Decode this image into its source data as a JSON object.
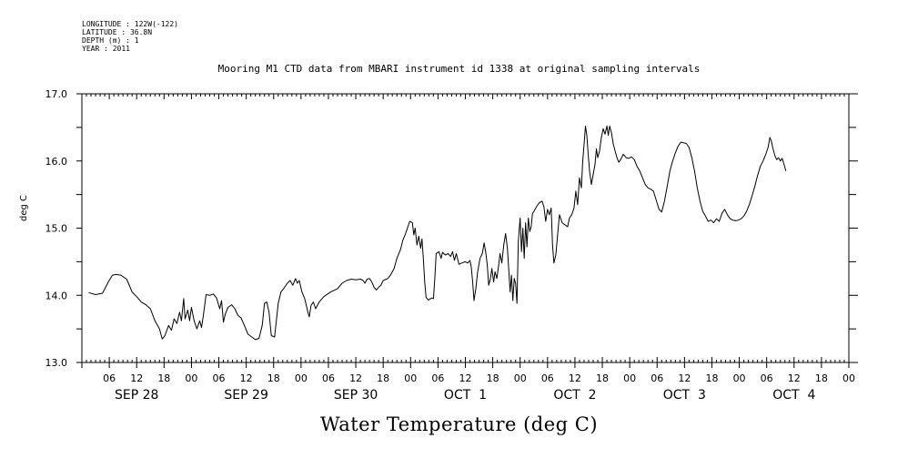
{
  "meta": {
    "longitude": "LONGITUDE : 122W(-122)",
    "latitude": "LATITUDE : 36.8N",
    "depth": "DEPTH (m) : 1",
    "year": "YEAR : 2011"
  },
  "chart_data": {
    "type": "line",
    "title": "Mooring M1 CTD data from MBARI instrument id 1338 at original sampling intervals",
    "bottom_title": "Water Temperature (deg C)",
    "ylabel": "deg C",
    "xlabel": "",
    "ylim": [
      13.0,
      17.0
    ],
    "yticks": [
      "13.0",
      "14.0",
      "15.0",
      "16.0",
      "17.0"
    ],
    "xlim_hours": [
      0,
      168
    ],
    "x_hour_ticks": [
      "06",
      "12",
      "18",
      "00",
      "06",
      "12",
      "18",
      "00",
      "06",
      "12",
      "18",
      "00",
      "06",
      "12",
      "18",
      "00",
      "06",
      "12",
      "18",
      "00",
      "06",
      "12",
      "18",
      "00",
      "06",
      "12",
      "18",
      "00"
    ],
    "x_day_labels": [
      "SEP 28",
      "SEP 29",
      "SEP 30",
      "OCT  1",
      "OCT  2",
      "OCT  3",
      "OCT  4"
    ],
    "grid": false,
    "series": [
      {
        "values": [
          [
            1.5,
            14.04
          ],
          [
            3.0,
            14.01
          ],
          [
            4.5,
            14.03
          ],
          [
            5.8,
            14.2
          ],
          [
            6.7,
            14.3
          ],
          [
            7.5,
            14.31
          ],
          [
            8.5,
            14.3
          ],
          [
            9.8,
            14.24
          ],
          [
            11.0,
            14.05
          ],
          [
            12.0,
            13.98
          ],
          [
            13.0,
            13.9
          ],
          [
            14.0,
            13.86
          ],
          [
            15.0,
            13.8
          ],
          [
            16.0,
            13.62
          ],
          [
            17.0,
            13.5
          ],
          [
            17.6,
            13.35
          ],
          [
            18.2,
            13.4
          ],
          [
            19.0,
            13.55
          ],
          [
            19.6,
            13.48
          ],
          [
            20.2,
            13.65
          ],
          [
            20.8,
            13.58
          ],
          [
            21.4,
            13.75
          ],
          [
            21.8,
            13.62
          ],
          [
            22.3,
            13.95
          ],
          [
            22.6,
            13.65
          ],
          [
            23.2,
            13.78
          ],
          [
            23.6,
            13.62
          ],
          [
            24.0,
            13.82
          ],
          [
            24.6,
            13.62
          ],
          [
            25.2,
            13.5
          ],
          [
            25.8,
            13.62
          ],
          [
            26.2,
            13.52
          ],
          [
            26.6,
            13.7
          ],
          [
            27.2,
            14.01
          ],
          [
            28.0,
            14.0
          ],
          [
            28.8,
            14.02
          ],
          [
            29.5,
            13.96
          ],
          [
            30.2,
            13.8
          ],
          [
            30.6,
            13.92
          ],
          [
            31.0,
            13.6
          ],
          [
            31.4,
            13.72
          ],
          [
            32.0,
            13.82
          ],
          [
            32.8,
            13.86
          ],
          [
            33.5,
            13.8
          ],
          [
            34.2,
            13.7
          ],
          [
            34.9,
            13.66
          ],
          [
            35.6,
            13.55
          ],
          [
            36.4,
            13.42
          ],
          [
            37.2,
            13.38
          ],
          [
            38.0,
            13.34
          ],
          [
            38.8,
            13.36
          ],
          [
            39.5,
            13.55
          ],
          [
            40.0,
            13.88
          ],
          [
            40.5,
            13.9
          ],
          [
            41.0,
            13.75
          ],
          [
            41.5,
            13.4
          ],
          [
            42.2,
            13.38
          ],
          [
            43.0,
            13.88
          ],
          [
            43.6,
            14.05
          ],
          [
            44.2,
            14.1
          ],
          [
            45.0,
            14.18
          ],
          [
            45.6,
            14.22
          ],
          [
            46.2,
            14.15
          ],
          [
            46.8,
            14.25
          ],
          [
            47.2,
            14.18
          ],
          [
            47.6,
            14.22
          ],
          [
            48.2,
            14.05
          ],
          [
            48.8,
            13.95
          ],
          [
            49.5,
            13.75
          ],
          [
            49.8,
            13.68
          ],
          [
            50.2,
            13.85
          ],
          [
            50.7,
            13.9
          ],
          [
            51.2,
            13.8
          ],
          [
            51.6,
            13.85
          ],
          [
            52.0,
            13.9
          ],
          [
            53.0,
            13.98
          ],
          [
            54.5,
            14.05
          ],
          [
            56.0,
            14.1
          ],
          [
            57.0,
            14.18
          ],
          [
            58.0,
            14.22
          ],
          [
            59.0,
            14.24
          ],
          [
            60.0,
            14.23
          ],
          [
            61.0,
            14.24
          ],
          [
            61.6,
            14.22
          ],
          [
            62.0,
            14.18
          ],
          [
            62.5,
            14.24
          ],
          [
            63.0,
            14.25
          ],
          [
            63.5,
            14.2
          ],
          [
            64.0,
            14.12
          ],
          [
            64.5,
            14.08
          ],
          [
            65.0,
            14.12
          ],
          [
            65.5,
            14.15
          ],
          [
            66.0,
            14.22
          ],
          [
            67.0,
            14.25
          ],
          [
            67.6,
            14.3
          ],
          [
            68.4,
            14.4
          ],
          [
            69.0,
            14.55
          ],
          [
            69.8,
            14.68
          ],
          [
            70.3,
            14.82
          ],
          [
            70.9,
            14.92
          ],
          [
            71.4,
            15.02
          ],
          [
            71.8,
            15.1
          ],
          [
            72.4,
            15.08
          ],
          [
            72.7,
            14.9
          ],
          [
            73.0,
            15.0
          ],
          [
            73.4,
            14.75
          ],
          [
            73.8,
            14.88
          ],
          [
            74.2,
            14.7
          ],
          [
            74.5,
            14.84
          ],
          [
            74.8,
            14.55
          ],
          [
            75.1,
            14.2
          ],
          [
            75.4,
            13.97
          ],
          [
            75.9,
            13.93
          ],
          [
            76.6,
            13.96
          ],
          [
            77.0,
            13.95
          ],
          [
            77.3,
            14.25
          ],
          [
            77.6,
            14.62
          ],
          [
            78.2,
            14.65
          ],
          [
            78.7,
            14.55
          ],
          [
            79.0,
            14.64
          ],
          [
            79.6,
            14.6
          ],
          [
            80.2,
            14.62
          ],
          [
            80.8,
            14.58
          ],
          [
            81.2,
            14.65
          ],
          [
            81.6,
            14.52
          ],
          [
            82.0,
            14.62
          ],
          [
            82.6,
            14.46
          ],
          [
            83.2,
            14.48
          ],
          [
            84.0,
            14.5
          ],
          [
            84.5,
            14.48
          ],
          [
            85.0,
            14.52
          ],
          [
            85.3,
            14.42
          ],
          [
            85.6,
            14.2
          ],
          [
            85.9,
            13.92
          ],
          [
            86.3,
            14.1
          ],
          [
            86.7,
            14.35
          ],
          [
            87.2,
            14.55
          ],
          [
            87.7,
            14.62
          ],
          [
            88.1,
            14.78
          ],
          [
            88.5,
            14.62
          ],
          [
            88.8,
            14.45
          ],
          [
            89.1,
            14.15
          ],
          [
            89.5,
            14.25
          ],
          [
            89.8,
            14.4
          ],
          [
            90.2,
            14.2
          ],
          [
            90.5,
            14.35
          ],
          [
            90.9,
            14.25
          ],
          [
            91.3,
            14.45
          ],
          [
            91.6,
            14.62
          ],
          [
            92.0,
            14.48
          ],
          [
            92.4,
            14.75
          ],
          [
            92.8,
            14.92
          ],
          [
            93.2,
            14.7
          ],
          [
            93.5,
            14.38
          ],
          [
            93.8,
            14.05
          ],
          [
            94.1,
            14.3
          ],
          [
            94.4,
            13.92
          ],
          [
            94.7,
            14.25
          ],
          [
            95.0,
            14.18
          ],
          [
            95.3,
            13.88
          ],
          [
            95.6,
            14.8
          ],
          [
            96.0,
            15.15
          ],
          [
            96.3,
            14.65
          ],
          [
            96.6,
            15.0
          ],
          [
            96.9,
            14.55
          ],
          [
            97.2,
            15.08
          ],
          [
            97.5,
            14.72
          ],
          [
            97.8,
            15.15
          ],
          [
            98.1,
            14.95
          ],
          [
            98.4,
            15.02
          ],
          [
            98.7,
            15.22
          ],
          [
            99.0,
            15.25
          ],
          [
            99.6,
            15.32
          ],
          [
            100.2,
            15.38
          ],
          [
            100.8,
            15.4
          ],
          [
            101.2,
            15.32
          ],
          [
            101.6,
            15.1
          ],
          [
            102.0,
            15.28
          ],
          [
            102.4,
            15.2
          ],
          [
            102.8,
            15.3
          ],
          [
            103.1,
            14.75
          ],
          [
            103.4,
            14.48
          ],
          [
            103.8,
            14.6
          ],
          [
            104.2,
            14.9
          ],
          [
            104.6,
            15.2
          ],
          [
            105.2,
            15.08
          ],
          [
            105.8,
            15.05
          ],
          [
            106.4,
            15.02
          ],
          [
            106.8,
            15.15
          ],
          [
            107.3,
            15.2
          ],
          [
            107.8,
            15.3
          ],
          [
            108.2,
            15.55
          ],
          [
            108.6,
            15.35
          ],
          [
            109.0,
            15.75
          ],
          [
            109.4,
            15.6
          ],
          [
            109.7,
            16.0
          ],
          [
            110.0,
            16.25
          ],
          [
            110.3,
            16.52
          ],
          [
            110.6,
            16.38
          ],
          [
            110.9,
            16.1
          ],
          [
            111.2,
            15.85
          ],
          [
            111.6,
            15.65
          ],
          [
            112.0,
            15.8
          ],
          [
            112.4,
            15.95
          ],
          [
            112.7,
            16.18
          ],
          [
            113.0,
            16.05
          ],
          [
            113.4,
            16.15
          ],
          [
            113.8,
            16.35
          ],
          [
            114.2,
            16.48
          ],
          [
            114.6,
            16.4
          ],
          [
            115.0,
            16.52
          ],
          [
            115.3,
            16.38
          ],
          [
            115.6,
            16.52
          ],
          [
            116.0,
            16.42
          ],
          [
            116.4,
            16.25
          ],
          [
            116.8,
            16.15
          ],
          [
            117.2,
            16.05
          ],
          [
            117.6,
            15.98
          ],
          [
            118.0,
            16.02
          ],
          [
            118.6,
            16.1
          ],
          [
            119.2,
            16.05
          ],
          [
            119.8,
            16.04
          ],
          [
            120.4,
            16.06
          ],
          [
            121.0,
            16.02
          ],
          [
            121.6,
            15.92
          ],
          [
            122.2,
            15.85
          ],
          [
            122.8,
            15.75
          ],
          [
            123.4,
            15.65
          ],
          [
            124.0,
            15.6
          ],
          [
            124.6,
            15.58
          ],
          [
            125.2,
            15.55
          ],
          [
            125.8,
            15.42
          ],
          [
            126.4,
            15.28
          ],
          [
            127.0,
            15.24
          ],
          [
            127.6,
            15.4
          ],
          [
            128.2,
            15.62
          ],
          [
            128.8,
            15.85
          ],
          [
            129.4,
            16.0
          ],
          [
            130.0,
            16.12
          ],
          [
            130.6,
            16.22
          ],
          [
            131.2,
            16.28
          ],
          [
            131.8,
            16.27
          ],
          [
            132.4,
            16.26
          ],
          [
            133.0,
            16.2
          ],
          [
            133.6,
            16.05
          ],
          [
            134.2,
            15.85
          ],
          [
            134.8,
            15.6
          ],
          [
            135.4,
            15.4
          ],
          [
            136.0,
            15.25
          ],
          [
            136.6,
            15.18
          ],
          [
            137.2,
            15.1
          ],
          [
            137.8,
            15.12
          ],
          [
            138.4,
            15.08
          ],
          [
            139.0,
            15.14
          ],
          [
            139.6,
            15.1
          ],
          [
            140.2,
            15.22
          ],
          [
            140.8,
            15.28
          ],
          [
            141.4,
            15.2
          ],
          [
            142.0,
            15.14
          ],
          [
            142.6,
            15.12
          ],
          [
            143.2,
            15.11
          ],
          [
            143.8,
            15.12
          ],
          [
            144.4,
            15.14
          ],
          [
            145.0,
            15.18
          ],
          [
            145.6,
            15.25
          ],
          [
            146.2,
            15.35
          ],
          [
            146.8,
            15.48
          ],
          [
            147.4,
            15.62
          ],
          [
            148.0,
            15.78
          ],
          [
            148.6,
            15.92
          ],
          [
            149.2,
            16.0
          ],
          [
            149.8,
            16.1
          ],
          [
            150.3,
            16.2
          ],
          [
            150.7,
            16.35
          ],
          [
            151.0,
            16.3
          ],
          [
            151.4,
            16.18
          ],
          [
            151.8,
            16.08
          ],
          [
            152.2,
            16.02
          ],
          [
            152.6,
            16.05
          ],
          [
            153.0,
            16.0
          ],
          [
            153.4,
            16.04
          ],
          [
            153.8,
            15.95
          ],
          [
            154.2,
            15.85
          ]
        ]
      }
    ]
  }
}
